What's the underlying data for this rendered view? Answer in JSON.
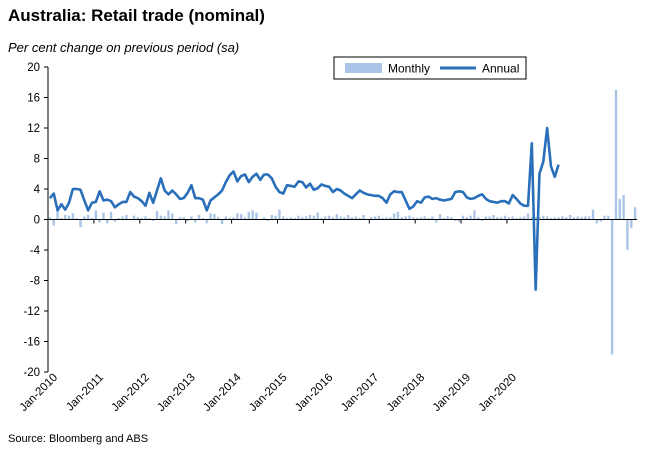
{
  "title": "Australia: Retail trade (nominal)",
  "subtitle": "Per cent change on previous period (sa)",
  "source": "Source: Bloomberg and ABS",
  "chart_data": {
    "type": "bar+line",
    "ylim": [
      -20,
      20
    ],
    "yticks": [
      "20",
      "16",
      "12",
      "8",
      "4",
      "0",
      "-4",
      "-8",
      "-12",
      "-16",
      "-20"
    ],
    "xtick_labels": [
      "Jan-2010",
      "Jan-2011",
      "Jan-2012",
      "Jan-2013",
      "Jan-2014",
      "Jan-2015",
      "Jan-2016",
      "Jan-2017",
      "Jan-2018",
      "Jan-2019",
      "Jan-2020"
    ],
    "legend_position": "top-right",
    "grid": false,
    "series": [
      {
        "name": "Monthly",
        "type": "bar",
        "color": "#a9c4e6",
        "values": [
          0.3,
          -0.8,
          1.2,
          0.2,
          0.6,
          0.5,
          0.8,
          0.2,
          -1.0,
          0.4,
          0.6,
          0.2,
          1.2,
          -0.4,
          0.9,
          -0.5,
          1.0,
          -0.3,
          0.2,
          0.4,
          0.6,
          0.1,
          0.5,
          0.3,
          0.2,
          0.4,
          0.2,
          -0.2,
          1.1,
          0.5,
          0.4,
          1.2,
          0.8,
          -0.6,
          0.3,
          0.3,
          -0.2,
          0.4,
          -0.4,
          0.6,
          0.2,
          -0.5,
          0.8,
          0.7,
          0.3,
          -0.6,
          0.4,
          0.2,
          0.3,
          0.8,
          0.7,
          0.3,
          1.0,
          1.2,
          0.9,
          0.1,
          0.3,
          -0.2,
          0.6,
          0.5,
          1.3,
          0.4,
          0.2,
          0.3,
          0.2,
          0.5,
          0.3,
          0.4,
          0.6,
          0.5,
          0.9,
          0.2,
          0.4,
          0.5,
          0.3,
          0.7,
          0.4,
          0.3,
          0.6,
          0.3,
          0.4,
          0.2,
          0.6,
          0.1,
          0.3,
          0.4,
          0.5,
          0.2,
          0.3,
          0.3,
          0.8,
          1.0,
          0.3,
          0.4,
          0.5,
          0.3,
          0.2,
          0.3,
          0.4,
          0.2,
          0.4,
          -0.4,
          0.7,
          0.2,
          0.4,
          0.3,
          -0.2,
          -0.3,
          0.5,
          0.3,
          0.5,
          1.2,
          0.3,
          -0.2,
          0.4,
          0.4,
          0.6,
          0.3,
          0.3,
          0.5,
          0.3,
          0.4,
          0.2,
          0.3,
          0.4,
          0.8,
          0.3,
          0.3,
          0.3,
          0.5,
          0.4,
          0.2,
          0.3,
          0.3,
          0.4,
          0.3,
          0.6,
          0.3,
          0.4,
          0.3,
          0.4,
          0.4,
          1.3,
          -0.5,
          -0.3,
          0.5,
          0.5,
          -17.7,
          17.0,
          2.7,
          3.2,
          -4.0,
          -1.1,
          1.6
        ]
      },
      {
        "name": "Annual",
        "type": "line",
        "color": "#2a6fb9",
        "values": [
          2.8,
          3.4,
          1.2,
          2.0,
          1.3,
          2.2,
          4.0,
          4.0,
          3.9,
          2.5,
          1.2,
          2.2,
          2.3,
          3.7,
          2.5,
          2.6,
          2.4,
          1.6,
          2.0,
          2.3,
          2.3,
          3.6,
          3.0,
          2.8,
          2.4,
          1.8,
          3.5,
          2.2,
          3.8,
          5.4,
          3.8,
          3.3,
          3.8,
          3.3,
          2.7,
          2.8,
          3.5,
          4.5,
          2.8,
          2.8,
          2.6,
          1.2,
          2.5,
          2.9,
          3.3,
          3.8,
          4.9,
          5.8,
          6.3,
          5.0,
          5.7,
          5.9,
          4.9,
          5.6,
          6.0,
          5.2,
          5.9,
          5.9,
          5.4,
          4.3,
          3.6,
          3.4,
          4.5,
          4.4,
          4.3,
          5.0,
          4.9,
          4.2,
          4.7,
          3.9,
          4.1,
          4.6,
          4.4,
          4.3,
          3.6,
          4.0,
          3.8,
          3.4,
          3.1,
          2.8,
          3.3,
          3.8,
          3.5,
          3.3,
          3.2,
          3.1,
          3.1,
          2.8,
          2.2,
          3.3,
          3.7,
          3.6,
          3.6,
          2.5,
          1.4,
          1.7,
          2.4,
          2.2,
          2.9,
          3.0,
          2.7,
          2.8,
          2.6,
          2.5,
          2.6,
          2.7,
          3.6,
          3.7,
          3.6,
          2.9,
          2.7,
          2.8,
          3.1,
          3.3,
          2.7,
          2.4,
          2.3,
          2.2,
          2.4,
          2.4,
          2.1,
          3.2,
          2.7,
          2.1,
          1.8,
          1.8,
          10.0,
          -9.2,
          6.0,
          7.6,
          12.0,
          7.0,
          5.6,
          7.2
        ]
      }
    ]
  }
}
